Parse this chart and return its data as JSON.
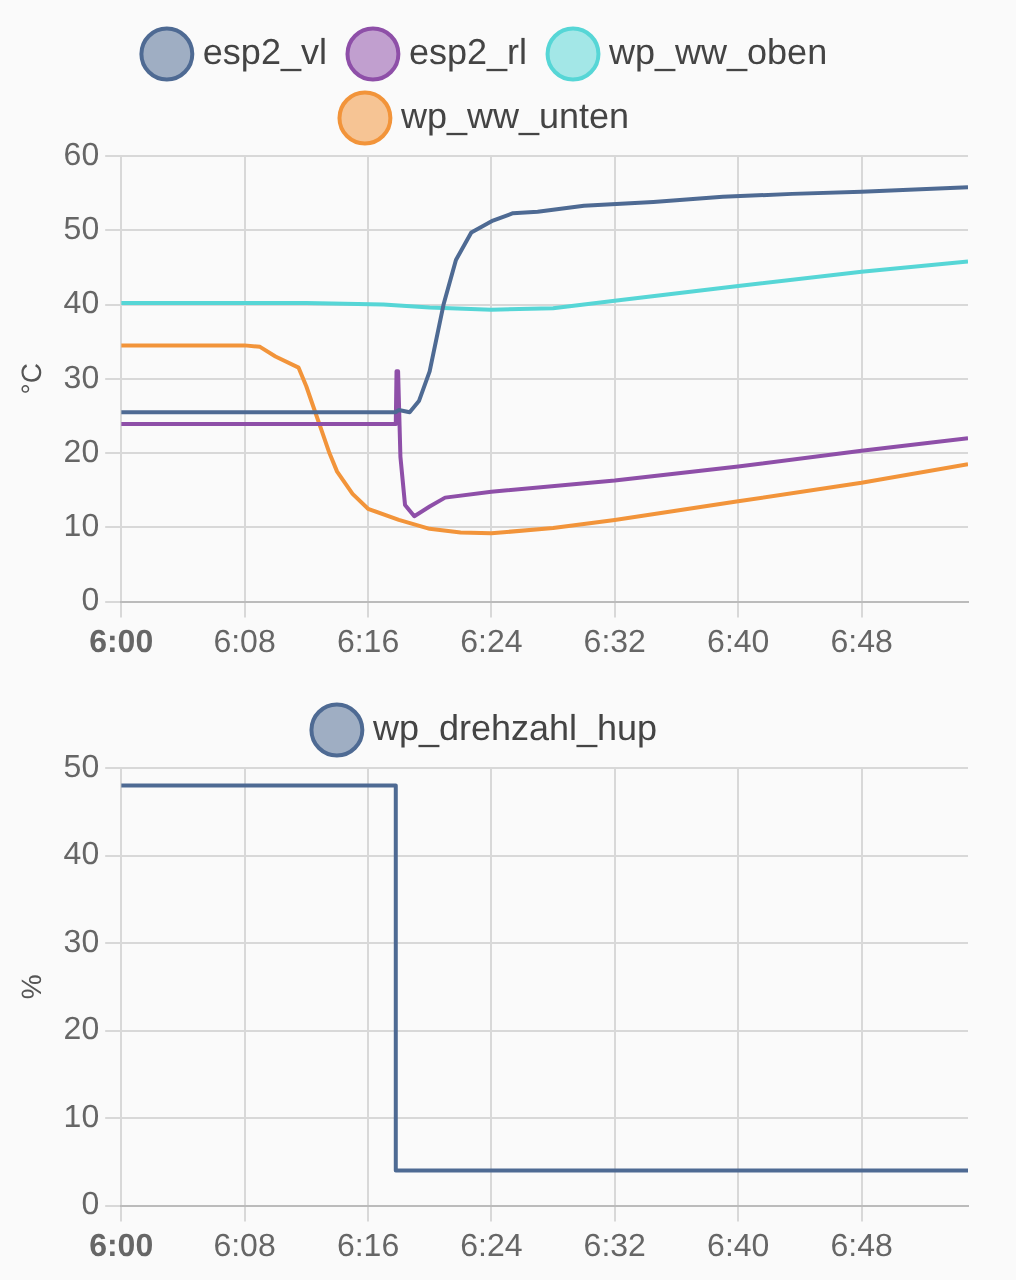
{
  "chart_data": [
    {
      "type": "line",
      "ylabel": "°C",
      "xlim": [
        6,
        6.915
      ],
      "ylim": [
        0,
        60
      ],
      "xticks": [
        {
          "value": 6,
          "label": "6:00"
        },
        {
          "value": 6.1333,
          "label": "6:08"
        },
        {
          "value": 6.2667,
          "label": "6:16"
        },
        {
          "value": 6.4,
          "label": "6:24"
        },
        {
          "value": 6.5333,
          "label": "6:32"
        },
        {
          "value": 6.6667,
          "label": "6:40"
        },
        {
          "value": 6.8,
          "label": "6:48"
        }
      ],
      "yticks": [
        0,
        10,
        20,
        30,
        40,
        50,
        60
      ],
      "grid": true,
      "legend": "top",
      "series": [
        {
          "name": "esp2_vl",
          "color": "#4e6a93",
          "x": [
            6,
            6.2967,
            6.3,
            6.3117,
            6.3217,
            6.3333,
            6.3483,
            6.3617,
            6.3783,
            6.4017,
            6.4233,
            6.45,
            6.5,
            6.575,
            6.65,
            6.725,
            6.8,
            6.915
          ],
          "values": [
            25.5,
            25.5,
            25.8,
            25.5,
            27,
            31,
            40,
            46,
            49.7,
            51.3,
            52.3,
            52.5,
            53.3,
            53.8,
            54.5,
            54.9,
            55.2,
            55.8
          ]
        },
        {
          "name": "esp2_rl",
          "color": "#8e4fa8",
          "x": [
            6,
            6.2967,
            6.2975,
            6.2992,
            6.3017,
            6.3067,
            6.3167,
            6.3333,
            6.35,
            6.4,
            6.5333,
            6.6667,
            6.8,
            6.915
          ],
          "values": [
            23.9,
            23.9,
            31,
            31,
            19.5,
            13,
            11.5,
            12.8,
            14,
            14.8,
            16.3,
            18.2,
            20.3,
            22
          ]
        },
        {
          "name": "wp_ww_oben",
          "color": "#56d6d6",
          "x": [
            6,
            6.2,
            6.2833,
            6.3333,
            6.4,
            6.4667,
            6.5333,
            6.6667,
            6.8,
            6.915
          ],
          "values": [
            40.2,
            40.2,
            40,
            39.6,
            39.3,
            39.5,
            40.5,
            42.5,
            44.4,
            45.8
          ]
        },
        {
          "name": "wp_ww_unten",
          "color": "#f2943a",
          "x": [
            6,
            6.1333,
            6.15,
            6.1667,
            6.1917,
            6.2,
            6.2083,
            6.2167,
            6.225,
            6.2333,
            6.25,
            6.2667,
            6.3,
            6.3333,
            6.3667,
            6.4,
            6.4667,
            6.5333,
            6.6667,
            6.8,
            6.915
          ],
          "values": [
            34.5,
            34.5,
            34.3,
            33,
            31.5,
            29,
            26,
            23,
            20,
            17.5,
            14.5,
            12.5,
            11,
            9.8,
            9.3,
            9.2,
            9.9,
            11,
            13.5,
            16,
            18.5
          ]
        }
      ]
    },
    {
      "type": "step",
      "ylabel": "%",
      "xlim": [
        6,
        6.915
      ],
      "ylim": [
        0,
        50
      ],
      "xticks": [
        {
          "value": 6,
          "label": "6:00"
        },
        {
          "value": 6.1333,
          "label": "6:08"
        },
        {
          "value": 6.2667,
          "label": "6:16"
        },
        {
          "value": 6.4,
          "label": "6:24"
        },
        {
          "value": 6.5333,
          "label": "6:32"
        },
        {
          "value": 6.6667,
          "label": "6:40"
        },
        {
          "value": 6.8,
          "label": "6:48"
        }
      ],
      "yticks": [
        0,
        10,
        20,
        30,
        40,
        50
      ],
      "grid": true,
      "legend": "top",
      "series": [
        {
          "name": "wp_drehzahl_hup",
          "color": "#4e6a93",
          "x": [
            6,
            6.2967,
            6.915
          ],
          "values": [
            48,
            4,
            4
          ]
        }
      ]
    }
  ]
}
